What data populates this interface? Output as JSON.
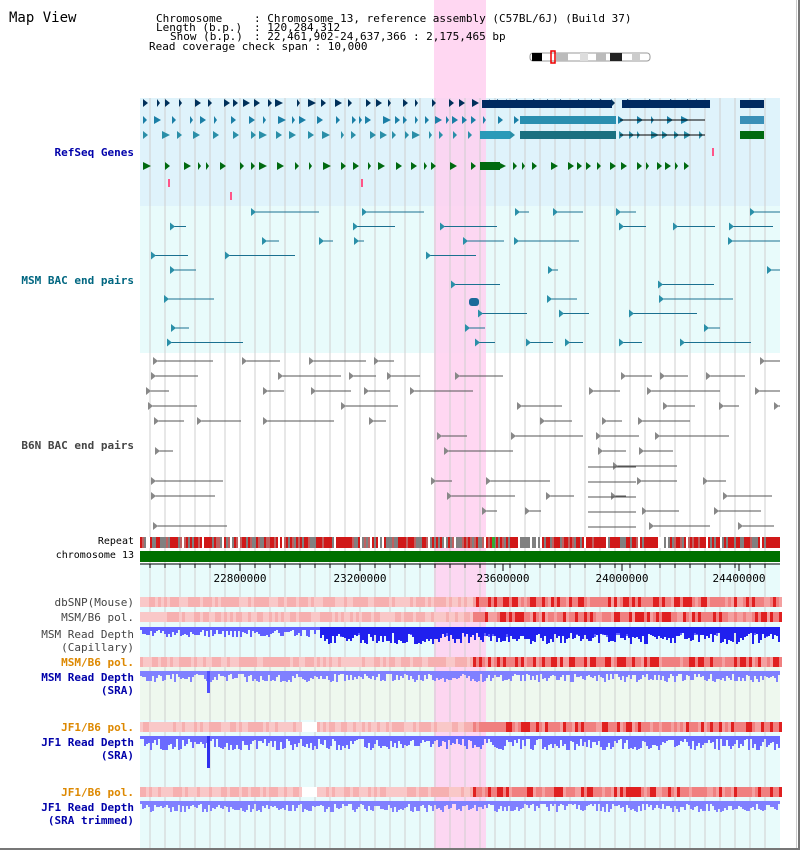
{
  "page": {
    "title": "Map View"
  },
  "info": {
    "chromosome_key": "Chromosome",
    "chromosome_val": ": Chromosome 13, reference assembly (C57BL/6J) (Build 37)",
    "length_key": "Length (b.p.)",
    "length_val": ": 120,284,312",
    "show_key": "Show (b.p.)",
    "show_val": ": 22,461,902-24,637,366 : 2,175,465 bp",
    "coverage": "Read coverage check span : 10,000"
  },
  "tracks": {
    "refseq": {
      "label": "RefSeq Genes",
      "color": "#0000aa"
    },
    "msm_bac": {
      "label": "MSM BAC end pairs",
      "color": "#006680"
    },
    "b6n_bac": {
      "label": "B6N BAC end pairs",
      "color": "#444444"
    },
    "repeat": {
      "label": "Repeat"
    },
    "chromosome": {
      "label": "chromosome 13"
    },
    "dbsnp": {
      "label": "dbSNP(Mouse)"
    },
    "msm_b6_pol_1": {
      "label": "MSM/B6 pol."
    },
    "msm_depth_cap": {
      "line1": "MSM Read Depth",
      "line2": "(Capillary)"
    },
    "msm_b6_pol_2": {
      "label": "MSM/B6 pol.",
      "color": "#dd8800"
    },
    "msm_depth_sra": {
      "line1": "MSM Read Depth",
      "line2": "(SRA)",
      "color": "#0000aa"
    },
    "jf1_b6_pol_1": {
      "label": "JF1/B6 pol.",
      "color": "#dd8800"
    },
    "jf1_depth_sra": {
      "line1": "JF1 Read Depth",
      "line2": "(SRA)",
      "color": "#0000aa"
    },
    "jf1_b6_pol_2": {
      "label": "JF1/B6 pol.",
      "color": "#dd8800"
    },
    "jf1_depth_trim": {
      "line1": "JF1 Read Depth",
      "line2": "(SRA trimmed)",
      "color": "#0000aa"
    }
  },
  "axis": {
    "ticks": [
      "22800000",
      "23200000",
      "23600000",
      "24000000",
      "24400000"
    ]
  },
  "highlight": {
    "color": "#ffd0f0"
  }
}
